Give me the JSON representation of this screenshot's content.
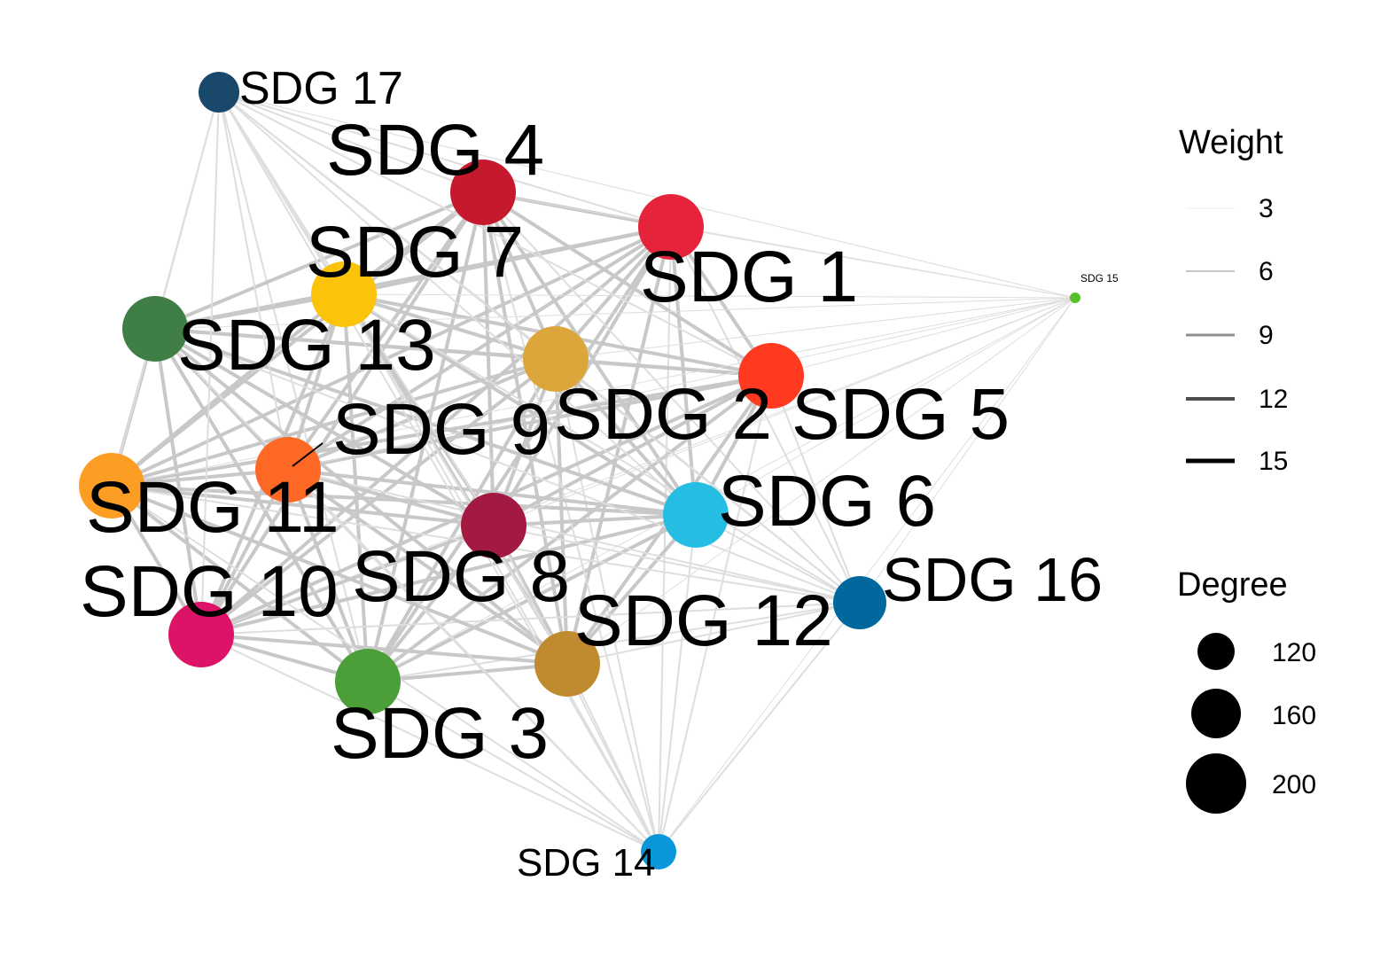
{
  "nodes": [
    {
      "id": "SDG 1",
      "label": "SDG 1",
      "color": "#E5243B"
    },
    {
      "id": "SDG 2",
      "label": "SDG 2",
      "color": "#DDA63A"
    },
    {
      "id": "SDG 3",
      "label": "SDG 3",
      "color": "#4C9F38"
    },
    {
      "id": "SDG 4",
      "label": "SDG 4",
      "color": "#C5192D"
    },
    {
      "id": "SDG 5",
      "label": "SDG 5",
      "color": "#FF3A21"
    },
    {
      "id": "SDG 6",
      "label": "SDG 6",
      "color": "#26BDE2"
    },
    {
      "id": "SDG 7",
      "label": "SDG 7",
      "color": "#FCC30B"
    },
    {
      "id": "SDG 8",
      "label": "SDG 8",
      "color": "#A21942"
    },
    {
      "id": "SDG 9",
      "label": "SDG 9",
      "color": "#FD6925"
    },
    {
      "id": "SDG 10",
      "label": "SDG 10",
      "color": "#DD1367"
    },
    {
      "id": "SDG 11",
      "label": "SDG 11",
      "color": "#FD9D24"
    },
    {
      "id": "SDG 12",
      "label": "SDG 12",
      "color": "#BF8B2E"
    },
    {
      "id": "SDG 13",
      "label": "SDG 13",
      "color": "#3F7E44"
    },
    {
      "id": "SDG 14",
      "label": "SDG 14",
      "color": "#0A97D9"
    },
    {
      "id": "SDG 15",
      "label": "SDG 15",
      "color": "#56C02B"
    },
    {
      "id": "SDG 16",
      "label": "SDG 16",
      "color": "#00689D"
    },
    {
      "id": "SDG 17",
      "label": "SDG 17",
      "color": "#19486A"
    }
  ],
  "legend": {
    "weight": {
      "title": "Weight",
      "items": [
        "3",
        "6",
        "9",
        "12",
        "15"
      ]
    },
    "degree": {
      "title": "Degree",
      "items": [
        "120",
        "160",
        "200"
      ]
    }
  },
  "colors": {
    "edge": "#c8c8c8",
    "edge_light": "#dedede",
    "legend_mark": "#000000"
  }
}
